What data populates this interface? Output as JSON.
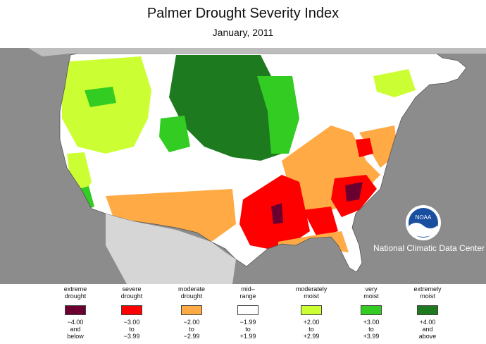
{
  "header": {
    "title": "Palmer Drought Severity Index",
    "subtitle": "January, 2011"
  },
  "map": {
    "background_color": "#8c8c8c",
    "land_color": "#ffffff",
    "border_color": "#555555",
    "dominant_categories": {
      "pacific_northwest": "moderately_moist",
      "northern_plains": "extremely_moist",
      "upper_midwest": "very_moist",
      "southwest": "moderate_drought",
      "lower_mississippi": "severe_drought",
      "southeast": "severe_drought",
      "carolinas": "extreme_drought"
    }
  },
  "agency": {
    "name": "National Climatic Data Center",
    "logo_text": "NOAA",
    "logo_icon": "noaa-logo-icon"
  },
  "legend": {
    "items": [
      {
        "key": "extreme_drought",
        "label": [
          "extreme",
          "drought"
        ],
        "range": [
          "−4.00",
          "and",
          "below"
        ],
        "color": "#6b0030"
      },
      {
        "key": "severe_drought",
        "label": [
          "severe",
          "drought"
        ],
        "range": [
          "−3.00",
          "to",
          "−3.99"
        ],
        "color": "#ff0000"
      },
      {
        "key": "moderate_drought",
        "label": [
          "moderate",
          "drought"
        ],
        "range": [
          "−2.00",
          "to",
          "−2.99"
        ],
        "color": "#ffaa44"
      },
      {
        "key": "mid_range",
        "label": [
          "mid–",
          "range"
        ],
        "range": [
          "−1.99",
          "to",
          "+1.99"
        ],
        "color": "#ffffff"
      },
      {
        "key": "moderately_moist",
        "label": [
          "moderately",
          "moist"
        ],
        "range": [
          "+2.00",
          "to",
          "+2.99"
        ],
        "color": "#ccff33"
      },
      {
        "key": "very_moist",
        "label": [
          "very",
          "moist"
        ],
        "range": [
          "+3.00",
          "to",
          "+3.99"
        ],
        "color": "#33cc22"
      },
      {
        "key": "extremely_moist",
        "label": [
          "extremely",
          "moist"
        ],
        "range": [
          "+4.00",
          "and",
          "above"
        ],
        "color": "#1e7a1e"
      }
    ]
  }
}
